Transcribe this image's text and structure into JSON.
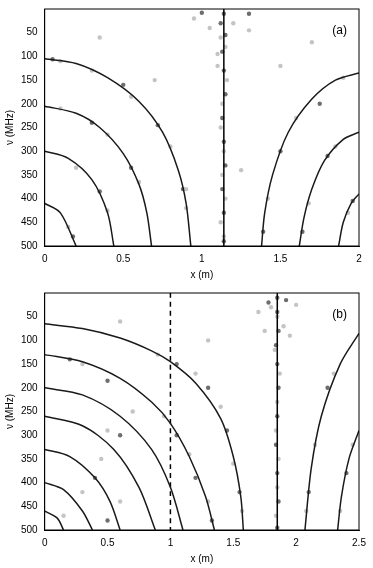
{
  "chart_data": [
    {
      "type": "scatter",
      "annotation": "(a)",
      "x_label": "x (m)",
      "y_label": "ν (MHz)",
      "xlim": [
        0,
        2
      ],
      "xticks": [
        0,
        0.5,
        1,
        1.5,
        2
      ],
      "ylim": [
        500,
        0
      ],
      "yticks": [
        50,
        100,
        150,
        200,
        250,
        300,
        350,
        400,
        450,
        500
      ],
      "grid": false,
      "series": [
        {
          "type": "scatter",
          "color": "#c4c4c4",
          "marker": "circle",
          "x": [
            1.12,
            1.15,
            1.1,
            1.16,
            1.13,
            1.12,
            1.14,
            1.13,
            1.15,
            1.12,
            1.14,
            1.05,
            1.2,
            0.95,
            1.3,
            1.1,
            0.1,
            0.3,
            0.55,
            0.8,
            0.9,
            0.1,
            0.4,
            0.6,
            0.2,
            0.4,
            0.15,
            1.9,
            1.6,
            1.42,
            1.85,
            1.68,
            1.93,
            0.35,
            0.7,
            1.7,
            1.5,
            0.9,
            1.25
          ],
          "values": [
            60,
            80,
            120,
            150,
            200,
            250,
            300,
            350,
            400,
            450,
            480,
            40,
            30,
            20,
            45,
            95,
            110,
            130,
            185,
            290,
            420,
            210,
            265,
            365,
            335,
            425,
            460,
            145,
            230,
            400,
            290,
            410,
            430,
            60,
            150,
            70,
            120,
            380,
            340
          ]
        },
        {
          "type": "scatter",
          "color": "#6e6e6e",
          "marker": "circle",
          "x": [
            1.14,
            1.12,
            1.15,
            1.13,
            1.14,
            1.15,
            1.13,
            1.14,
            1.15,
            1.13,
            1.14,
            1.14,
            1.0,
            1.3,
            0.05,
            0.5,
            0.72,
            0.88,
            0.3,
            0.55,
            0.35,
            0.18,
            1.75,
            1.5,
            1.39,
            1.8,
            1.64,
            1.96
          ],
          "values": [
            10,
            30,
            55,
            90,
            130,
            180,
            230,
            280,
            330,
            380,
            430,
            490,
            8,
            10,
            106,
            160,
            245,
            380,
            240,
            335,
            385,
            480,
            200,
            300,
            470,
            310,
            470,
            405
          ]
        },
        {
          "type": "line",
          "color": "#1a1a1a",
          "line_style": "solid",
          "x": [
            0,
            0.2,
            0.4,
            0.6,
            0.75,
            0.85,
            0.9,
            0.93
          ],
          "values": [
            105,
            115,
            145,
            195,
            260,
            340,
            410,
            500
          ]
        },
        {
          "type": "line",
          "color": "#1a1a1a",
          "line_style": "solid",
          "x": [
            0,
            0.2,
            0.35,
            0.5,
            0.6,
            0.65,
            0.68
          ],
          "values": [
            205,
            220,
            250,
            305,
            370,
            430,
            500
          ]
        },
        {
          "type": "line",
          "color": "#1a1a1a",
          "line_style": "solid",
          "x": [
            0,
            0.15,
            0.3,
            0.4,
            0.44
          ],
          "values": [
            300,
            315,
            360,
            430,
            500
          ]
        },
        {
          "type": "line",
          "color": "#1a1a1a",
          "line_style": "solid",
          "x": [
            0,
            0.1,
            0.2
          ],
          "values": [
            410,
            430,
            500
          ]
        },
        {
          "type": "line",
          "color": "#1a1a1a",
          "line_style": "solid",
          "x": [
            2,
            1.85,
            1.7,
            1.55,
            1.45,
            1.4,
            1.38
          ],
          "values": [
            135,
            150,
            190,
            260,
            350,
            430,
            500
          ]
        },
        {
          "type": "line",
          "color": "#1a1a1a",
          "line_style": "solid",
          "x": [
            2,
            1.9,
            1.78,
            1.7,
            1.65,
            1.62
          ],
          "values": [
            260,
            275,
            320,
            380,
            440,
            500
          ]
        },
        {
          "type": "line",
          "color": "#1a1a1a",
          "line_style": "solid",
          "x": [
            2,
            1.95,
            1.9,
            1.87
          ],
          "values": [
            390,
            410,
            450,
            500
          ]
        },
        {
          "type": "line",
          "color": "#000000",
          "line_style": "solid",
          "x": [
            1.14,
            1.14
          ],
          "values": [
            0,
            500
          ]
        }
      ]
    },
    {
      "type": "scatter",
      "annotation": "(b)",
      "x_label": "x (m)",
      "y_label": "ν (MHz)",
      "xlim": [
        0,
        2.5
      ],
      "xticks": [
        0,
        0.5,
        1,
        1.5,
        2,
        2.5
      ],
      "ylim": [
        500,
        0
      ],
      "yticks": [
        50,
        100,
        150,
        200,
        250,
        300,
        350,
        400,
        450,
        500
      ],
      "grid": false,
      "series": [
        {
          "type": "scatter",
          "color": "#c4c4c4",
          "marker": "circle",
          "x": [
            1.85,
            1.8,
            1.9,
            1.83,
            1.87,
            1.85,
            1.84,
            1.86,
            1.85,
            1.84,
            1.7,
            2.0,
            1.95,
            1.75,
            0.9,
            1.2,
            1.4,
            1.5,
            1.57,
            0.95,
            1.15,
            1.3,
            0.7,
            0.3,
            0.5,
            0.45,
            0.3,
            0.6,
            0.15,
            2.3,
            2.15,
            2.08,
            2.45,
            2.35,
            0.6,
            1.3
          ],
          "values": [
            50,
            30,
            70,
            120,
            170,
            230,
            290,
            350,
            410,
            470,
            40,
            25,
            90,
            80,
            130,
            170,
            240,
            360,
            460,
            260,
            340,
            440,
            250,
            150,
            290,
            350,
            420,
            440,
            470,
            170,
            320,
            460,
            320,
            460,
            60,
            100
          ]
        },
        {
          "type": "scatter",
          "color": "#6e6e6e",
          "marker": "circle",
          "x": [
            1.85,
            1.85,
            1.86,
            1.84,
            1.85,
            1.86,
            1.85,
            1.84,
            1.85,
            1.86,
            1.85,
            1.78,
            1.92,
            1.05,
            1.3,
            1.45,
            1.55,
            1.05,
            1.2,
            1.33,
            0.2,
            0.5,
            0.6,
            0.4,
            0.5,
            2.25,
            2.1,
            2.4
          ],
          "values": [
            10,
            40,
            80,
            110,
            150,
            200,
            260,
            320,
            380,
            440,
            495,
            20,
            15,
            150,
            200,
            290,
            420,
            300,
            390,
            480,
            140,
            185,
            300,
            390,
            480,
            200,
            420,
            380
          ]
        },
        {
          "type": "line",
          "color": "#1a1a1a",
          "line_style": "solid",
          "x": [
            0,
            0.3,
            0.6,
            0.85,
            1.0,
            1.2,
            1.4,
            1.5,
            1.56,
            1.58
          ],
          "values": [
            65,
            75,
            95,
            122,
            145,
            190,
            265,
            345,
            430,
            500
          ]
        },
        {
          "type": "line",
          "color": "#1a1a1a",
          "line_style": "solid",
          "x": [
            0,
            0.3,
            0.6,
            0.85,
            1.0,
            1.15,
            1.28,
            1.35
          ],
          "values": [
            130,
            145,
            180,
            230,
            275,
            345,
            430,
            500
          ]
        },
        {
          "type": "line",
          "color": "#1a1a1a",
          "line_style": "solid",
          "x": [
            0,
            0.3,
            0.6,
            0.85,
            1.0,
            1.1
          ],
          "values": [
            200,
            215,
            260,
            330,
            410,
            500
          ]
        },
        {
          "type": "line",
          "color": "#1a1a1a",
          "line_style": "solid",
          "x": [
            0,
            0.3,
            0.55,
            0.75,
            0.88
          ],
          "values": [
            260,
            280,
            330,
            410,
            500
          ]
        },
        {
          "type": "line",
          "color": "#1a1a1a",
          "line_style": "solid",
          "x": [
            0,
            0.2,
            0.4,
            0.52,
            0.6
          ],
          "values": [
            330,
            345,
            390,
            440,
            500
          ]
        },
        {
          "type": "line",
          "color": "#1a1a1a",
          "line_style": "solid",
          "x": [
            0,
            0.15,
            0.3,
            0.38
          ],
          "values": [
            400,
            415,
            460,
            500
          ]
        },
        {
          "type": "line",
          "color": "#1a1a1a",
          "line_style": "solid",
          "x": [
            0,
            0.1,
            0.15
          ],
          "values": [
            460,
            475,
            500
          ]
        },
        {
          "type": "line",
          "color": "#1a1a1a",
          "line_style": "solid",
          "x": [
            2.5,
            2.35,
            2.2,
            2.12,
            2.07
          ],
          "values": [
            85,
            150,
            260,
            370,
            500
          ]
        },
        {
          "type": "line",
          "color": "#1a1a1a",
          "line_style": "solid",
          "x": [
            2.5,
            2.42,
            2.36,
            2.33
          ],
          "values": [
            290,
            350,
            430,
            500
          ]
        },
        {
          "type": "line",
          "color": "#000000",
          "line_style": "solid",
          "x": [
            1.85,
            1.85
          ],
          "values": [
            0,
            500
          ]
        },
        {
          "type": "line",
          "color": "#000000",
          "line_style": "dashed",
          "x": [
            1,
            1
          ],
          "values": [
            0,
            500
          ]
        }
      ]
    }
  ]
}
